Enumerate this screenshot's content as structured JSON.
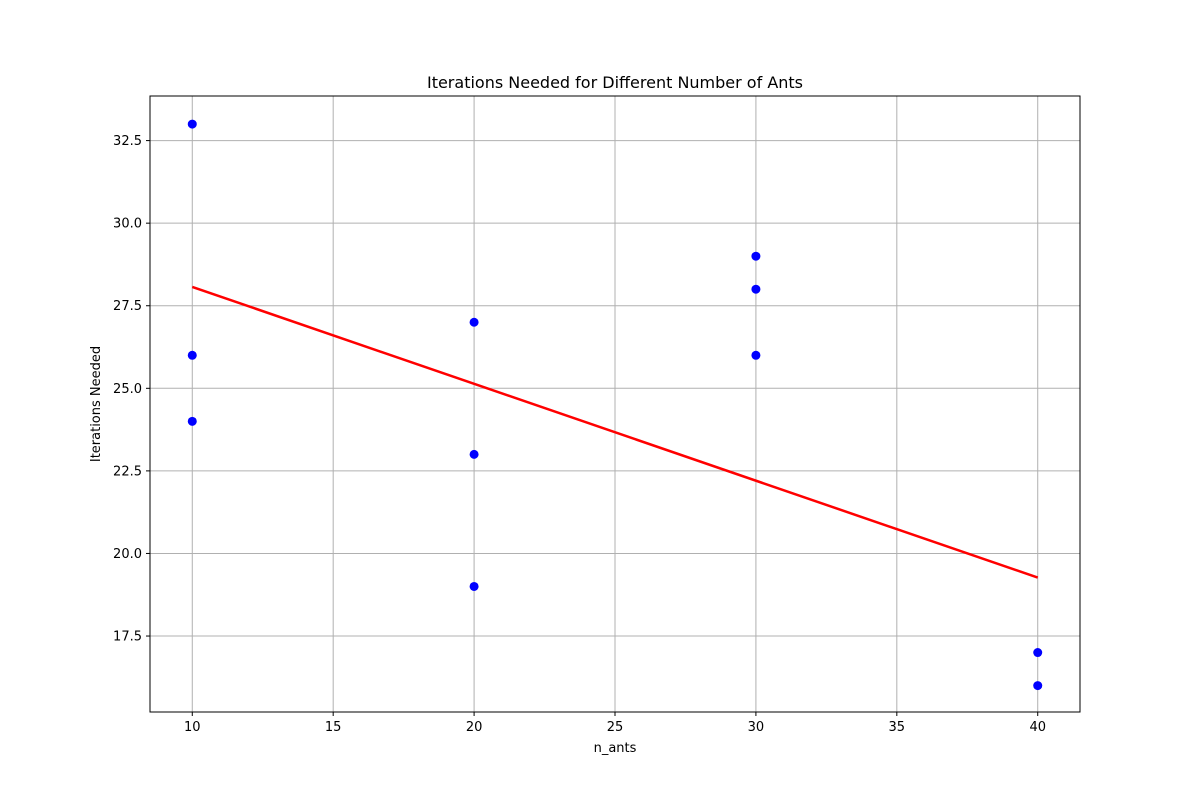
{
  "chart_data": {
    "type": "scatter",
    "title": "Iterations Needed for Different Number of Ants",
    "xlabel": "n_ants",
    "ylabel": "Iterations Needed",
    "xlim": [
      8.5,
      41.5
    ],
    "ylim": [
      15.2,
      33.85
    ],
    "xticks": [
      "10",
      "15",
      "20",
      "25",
      "30",
      "35",
      "40"
    ],
    "yticks": [
      "17.5",
      "20.0",
      "22.5",
      "25.0",
      "27.5",
      "30.0",
      "32.5"
    ],
    "grid": true,
    "series": [
      {
        "kind": "points",
        "color": "#0000ff",
        "x": [
          10,
          10,
          10,
          20,
          20,
          20,
          30,
          30,
          30,
          40,
          40
        ],
        "y": [
          33,
          26,
          24,
          27,
          23,
          19,
          29,
          28,
          26,
          17,
          16
        ]
      },
      {
        "kind": "line",
        "color": "#ff0000",
        "x": [
          10,
          40
        ],
        "y": [
          28.07,
          19.27
        ]
      }
    ]
  }
}
